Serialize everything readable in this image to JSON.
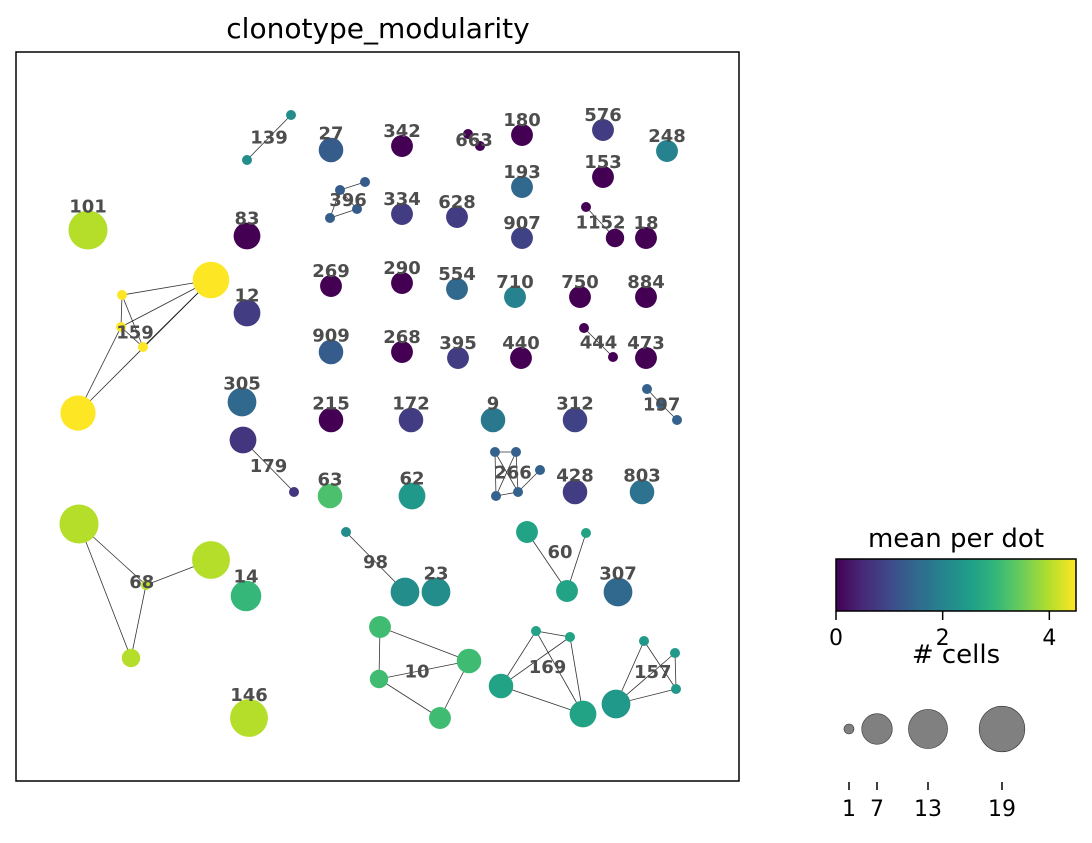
{
  "chart_data": {
    "type": "network",
    "title": "clonotype_modularity",
    "colorbar": {
      "title": "mean per dot",
      "ticks": [
        0,
        2,
        4
      ],
      "range": [
        0,
        4.5
      ],
      "colormap": "viridis"
    },
    "size_legend": {
      "title": "# cells",
      "values": [
        1,
        7,
        13,
        19
      ]
    },
    "clonotypes": [
      {
        "label": "139",
        "value": 2.2,
        "nodes": [
          [
            291,
            115,
            1
          ],
          [
            247,
            160,
            1
          ]
        ],
        "edges": [
          [
            0,
            1
          ]
        ]
      },
      {
        "label": "27",
        "value": 1.3,
        "nodes": [
          [
            331,
            150,
            4
          ]
        ],
        "edges": []
      },
      {
        "label": "342",
        "value": 0.0,
        "nodes": [
          [
            402,
            146,
            3
          ]
        ],
        "edges": []
      },
      {
        "label": "663",
        "value": 0.0,
        "nodes": [
          [
            468,
            134,
            1
          ],
          [
            480,
            146,
            1
          ]
        ],
        "edges": [
          [
            0,
            1
          ]
        ]
      },
      {
        "label": "180",
        "value": 0.0,
        "nodes": [
          [
            522,
            135,
            3
          ]
        ],
        "edges": []
      },
      {
        "label": "576",
        "value": 0.8,
        "nodes": [
          [
            603,
            130,
            3
          ]
        ],
        "edges": []
      },
      {
        "label": "248",
        "value": 2.0,
        "nodes": [
          [
            667,
            151,
            3
          ]
        ],
        "edges": []
      },
      {
        "label": "193",
        "value": 1.5,
        "nodes": [
          [
            522,
            187,
            3
          ]
        ],
        "edges": []
      },
      {
        "label": "153",
        "value": 0.0,
        "nodes": [
          [
            603,
            177,
            3
          ]
        ],
        "edges": []
      },
      {
        "label": "396",
        "value": 1.3,
        "nodes": [
          [
            340,
            190,
            1
          ],
          [
            365,
            182,
            1
          ],
          [
            330,
            218,
            1
          ],
          [
            357,
            209,
            1
          ]
        ],
        "edges": [
          [
            0,
            1
          ],
          [
            0,
            2
          ],
          [
            0,
            3
          ],
          [
            2,
            3
          ]
        ]
      },
      {
        "label": "334",
        "value": 0.8,
        "nodes": [
          [
            402,
            214,
            3
          ]
        ],
        "edges": []
      },
      {
        "label": "628",
        "value": 0.8,
        "nodes": [
          [
            457,
            217,
            3
          ]
        ],
        "edges": []
      },
      {
        "label": "907",
        "value": 0.9,
        "nodes": [
          [
            522,
            238,
            3
          ]
        ],
        "edges": []
      },
      {
        "label": "1152",
        "value": 0.0,
        "nodes": [
          [
            586,
            207,
            1
          ],
          [
            615,
            238,
            2
          ]
        ],
        "edges": [
          [
            0,
            1
          ]
        ]
      },
      {
        "label": "18",
        "value": 0.0,
        "nodes": [
          [
            646,
            238,
            3
          ]
        ],
        "edges": []
      },
      {
        "label": "101",
        "value": 4.0,
        "nodes": [
          [
            88,
            230,
            13
          ]
        ],
        "edges": []
      },
      {
        "label": "83",
        "value": 0.0,
        "nodes": [
          [
            247,
            236,
            5
          ]
        ],
        "edges": []
      },
      {
        "label": "159",
        "value": 4.5,
        "nodes": [
          [
            211,
            280,
            11
          ],
          [
            122,
            295,
            1
          ],
          [
            121,
            327,
            1
          ],
          [
            143,
            347,
            1
          ],
          [
            78,
            413,
            10
          ]
        ],
        "edges": [
          [
            0,
            1
          ],
          [
            0,
            2
          ],
          [
            0,
            3
          ],
          [
            0,
            4
          ],
          [
            1,
            2
          ],
          [
            1,
            3
          ],
          [
            2,
            3
          ],
          [
            2,
            4
          ]
        ]
      },
      {
        "label": "12",
        "value": 0.8,
        "nodes": [
          [
            247,
            313,
            5
          ]
        ],
        "edges": []
      },
      {
        "label": "269",
        "value": 0.0,
        "nodes": [
          [
            331,
            286,
            3
          ]
        ],
        "edges": []
      },
      {
        "label": "290",
        "value": 0.0,
        "nodes": [
          [
            402,
            283,
            3
          ]
        ],
        "edges": []
      },
      {
        "label": "554",
        "value": 1.5,
        "nodes": [
          [
            457,
            289,
            3
          ]
        ],
        "edges": []
      },
      {
        "label": "710",
        "value": 2.0,
        "nodes": [
          [
            515,
            297,
            3
          ]
        ],
        "edges": []
      },
      {
        "label": "750",
        "value": 0.0,
        "nodes": [
          [
            580,
            297,
            3
          ]
        ],
        "edges": []
      },
      {
        "label": "884",
        "value": 0.0,
        "nodes": [
          [
            646,
            297,
            3
          ]
        ],
        "edges": []
      },
      {
        "label": "909",
        "value": 1.3,
        "nodes": [
          [
            331,
            352,
            4
          ]
        ],
        "edges": []
      },
      {
        "label": "268",
        "value": 0.0,
        "nodes": [
          [
            402,
            352,
            3
          ]
        ],
        "edges": []
      },
      {
        "label": "395",
        "value": 0.8,
        "nodes": [
          [
            458,
            358,
            3
          ]
        ],
        "edges": []
      },
      {
        "label": "440",
        "value": 0.0,
        "nodes": [
          [
            521,
            358,
            3
          ]
        ],
        "edges": []
      },
      {
        "label": "444",
        "value": 0.0,
        "nodes": [
          [
            584,
            328,
            1
          ],
          [
            613,
            357,
            1
          ]
        ],
        "edges": [
          [
            0,
            1
          ]
        ]
      },
      {
        "label": "473",
        "value": 0.0,
        "nodes": [
          [
            646,
            358,
            3
          ]
        ],
        "edges": []
      },
      {
        "label": "305",
        "value": 1.5,
        "nodes": [
          [
            242,
            402,
            6
          ]
        ],
        "edges": []
      },
      {
        "label": "197",
        "value": 1.4,
        "nodes": [
          [
            647,
            389,
            1
          ],
          [
            661,
            404,
            1
          ],
          [
            677,
            420,
            1
          ]
        ],
        "edges": [
          [
            0,
            1
          ],
          [
            1,
            2
          ]
        ]
      },
      {
        "label": "215",
        "value": 0.0,
        "nodes": [
          [
            331,
            420,
            4
          ]
        ],
        "edges": []
      },
      {
        "label": "172",
        "value": 0.8,
        "nodes": [
          [
            411,
            420,
            4
          ]
        ],
        "edges": []
      },
      {
        "label": "9",
        "value": 1.8,
        "nodes": [
          [
            493,
            420,
            4
          ]
        ],
        "edges": []
      },
      {
        "label": "312",
        "value": 0.9,
        "nodes": [
          [
            575,
            420,
            4
          ]
        ],
        "edges": []
      },
      {
        "label": "179",
        "value": 0.7,
        "nodes": [
          [
            243,
            440,
            5
          ],
          [
            294,
            492,
            1
          ]
        ],
        "edges": [
          [
            0,
            1
          ]
        ]
      },
      {
        "label": "266",
        "value": 1.4,
        "nodes": [
          [
            495,
            452,
            1
          ],
          [
            516,
            452,
            1
          ],
          [
            540,
            470,
            1
          ],
          [
            496,
            496,
            1
          ],
          [
            518,
            492,
            1
          ]
        ],
        "edges": [
          [
            0,
            1
          ],
          [
            0,
            3
          ],
          [
            0,
            4
          ],
          [
            1,
            3
          ],
          [
            1,
            4
          ],
          [
            2,
            4
          ],
          [
            3,
            4
          ]
        ]
      },
      {
        "label": "428",
        "value": 0.8,
        "nodes": [
          [
            575,
            492,
            4
          ]
        ],
        "edges": []
      },
      {
        "label": "803",
        "value": 1.7,
        "nodes": [
          [
            642,
            492,
            4
          ]
        ],
        "edges": []
      },
      {
        "label": "63",
        "value": 3.2,
        "nodes": [
          [
            330,
            496,
            4
          ]
        ],
        "edges": []
      },
      {
        "label": "62",
        "value": 2.4,
        "nodes": [
          [
            412,
            496,
            5
          ]
        ],
        "edges": []
      },
      {
        "label": "60",
        "value": 2.6,
        "nodes": [
          [
            527,
            532,
            3
          ],
          [
            586,
            533,
            1
          ],
          [
            567,
            591,
            3
          ]
        ],
        "edges": [
          [
            0,
            2
          ],
          [
            1,
            2
          ]
        ]
      },
      {
        "label": "68",
        "value": 4.0,
        "nodes": [
          [
            79,
            524,
            13
          ],
          [
            211,
            560,
            12
          ],
          [
            146,
            585,
            1
          ],
          [
            131,
            658,
            2
          ]
        ],
        "edges": [
          [
            0,
            2
          ],
          [
            0,
            3
          ],
          [
            1,
            2
          ],
          [
            2,
            3
          ]
        ]
      },
      {
        "label": "98",
        "value": 2.2,
        "nodes": [
          [
            346,
            532,
            1
          ],
          [
            405,
            592,
            6
          ]
        ],
        "edges": [
          [
            0,
            1
          ]
        ]
      },
      {
        "label": "23",
        "value": 2.2,
        "nodes": [
          [
            436,
            592,
            6
          ]
        ],
        "edges": []
      },
      {
        "label": "307",
        "value": 1.5,
        "nodes": [
          [
            618,
            592,
            6
          ]
        ],
        "edges": []
      },
      {
        "label": "14",
        "value": 3.0,
        "nodes": [
          [
            246,
            596,
            7
          ]
        ],
        "edges": []
      },
      {
        "label": "10",
        "value": 3.1,
        "nodes": [
          [
            380,
            627,
            3
          ],
          [
            469,
            661,
            4
          ],
          [
            379,
            679,
            2
          ],
          [
            440,
            718,
            3
          ]
        ],
        "edges": [
          [
            0,
            1
          ],
          [
            0,
            2
          ],
          [
            1,
            2
          ],
          [
            1,
            3
          ],
          [
            2,
            3
          ]
        ]
      },
      {
        "label": "169",
        "value": 2.6,
        "nodes": [
          [
            536,
            631,
            1
          ],
          [
            570,
            637,
            1
          ],
          [
            501,
            686,
            4
          ],
          [
            583,
            714,
            5
          ]
        ],
        "edges": [
          [
            0,
            1
          ],
          [
            0,
            2
          ],
          [
            0,
            3
          ],
          [
            1,
            2
          ],
          [
            1,
            3
          ],
          [
            2,
            3
          ]
        ]
      },
      {
        "label": "157",
        "value": 2.4,
        "nodes": [
          [
            644,
            641,
            1
          ],
          [
            675,
            653,
            1
          ],
          [
            616,
            704,
            6
          ],
          [
            676,
            689,
            1
          ]
        ],
        "edges": [
          [
            0,
            2
          ],
          [
            0,
            3
          ],
          [
            1,
            2
          ],
          [
            1,
            3
          ],
          [
            2,
            3
          ]
        ]
      },
      {
        "label": "146",
        "value": 4.0,
        "nodes": [
          [
            249,
            718,
            12
          ]
        ],
        "edges": []
      }
    ]
  }
}
